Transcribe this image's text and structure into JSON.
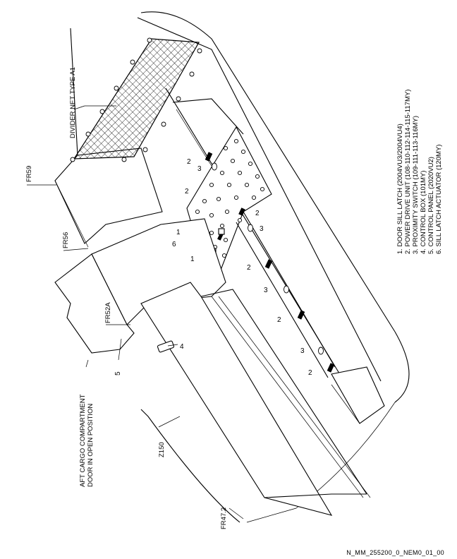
{
  "legend": [
    "1. DOOR SILL LATCH (2004VU3/2004VU4)",
    "2. POWER DRIVE UNIT (108-110-112-114-115-117MY)",
    "3. PROXIMITY SWITCH (109-111-113-116MY)",
    "4. CONTROL BOX (101MY)",
    "5. CONTROL PANEL (2020VU2)",
    "6. SILL LATCH ACTUATOR (120MY)"
  ],
  "frames": {
    "fr59": "FR59",
    "fr56": "FR56",
    "fr52a": "FR52A",
    "fr47_2": "FR47.2",
    "z150": "Z150"
  },
  "callouts": {
    "divider_net": "DIVIDER NET TYPE A1",
    "door_line1": "AFT CARGO COMPARTMENT",
    "door_line2": "DOOR IN OPEN POSITION",
    "n1": "1",
    "n2": "2",
    "n3": "3",
    "n4": "4",
    "n5": "5",
    "n6": "6"
  },
  "footer": "N_MM_255200_0_NEM0_01_00"
}
